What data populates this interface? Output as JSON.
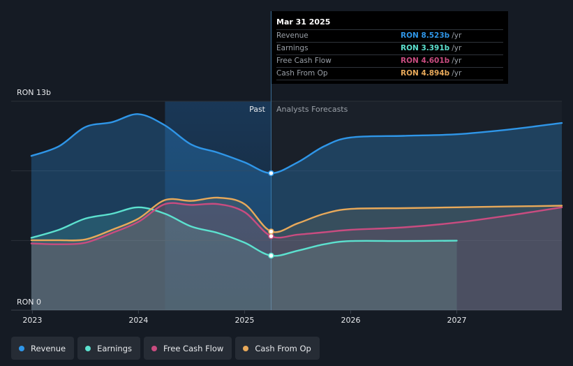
{
  "chart_data": {
    "type": "area",
    "y_axis": {
      "top_label": "RON 13b",
      "bottom_label": "RON 0",
      "ylim": [
        0,
        13
      ]
    },
    "x_axis": {
      "ticks": [
        "2023",
        "2024",
        "2025",
        "2026",
        "2027"
      ],
      "xlim": [
        2022.8,
        2027.99
      ]
    },
    "past_label": "Past",
    "forecast_label": "Analysts Forecasts",
    "divider_x": 2025.25,
    "series": [
      {
        "name": "Revenue",
        "color": "#2f96e8",
        "points": [
          [
            2022.99,
            9.6
          ],
          [
            2023.25,
            10.2
          ],
          [
            2023.5,
            11.4
          ],
          [
            2023.75,
            11.7
          ],
          [
            2024.0,
            12.2
          ],
          [
            2024.25,
            11.5
          ],
          [
            2024.5,
            10.3
          ],
          [
            2024.75,
            9.8
          ],
          [
            2025.0,
            9.2
          ],
          [
            2025.25,
            8.523
          ],
          [
            2025.5,
            9.2
          ],
          [
            2025.75,
            10.2
          ],
          [
            2026.0,
            10.75
          ],
          [
            2026.5,
            10.85
          ],
          [
            2027.0,
            10.95
          ],
          [
            2027.5,
            11.25
          ],
          [
            2027.99,
            11.65
          ]
        ]
      },
      {
        "name": "Earnings",
        "color": "#5ce1cf",
        "points": [
          [
            2022.99,
            4.5
          ],
          [
            2023.25,
            5.0
          ],
          [
            2023.5,
            5.7
          ],
          [
            2023.75,
            6.0
          ],
          [
            2024.0,
            6.4
          ],
          [
            2024.25,
            6.0
          ],
          [
            2024.5,
            5.2
          ],
          [
            2024.75,
            4.8
          ],
          [
            2025.0,
            4.2
          ],
          [
            2025.25,
            3.391
          ],
          [
            2025.5,
            3.7
          ],
          [
            2025.75,
            4.1
          ],
          [
            2026.0,
            4.3
          ],
          [
            2026.5,
            4.3
          ],
          [
            2027.0,
            4.32
          ]
        ]
      },
      {
        "name": "Free Cash Flow",
        "color": "#c94c80",
        "points": [
          [
            2022.99,
            4.15
          ],
          [
            2023.25,
            4.1
          ],
          [
            2023.5,
            4.2
          ],
          [
            2023.75,
            4.8
          ],
          [
            2024.0,
            5.5
          ],
          [
            2024.25,
            6.6
          ],
          [
            2024.5,
            6.55
          ],
          [
            2024.75,
            6.6
          ],
          [
            2025.0,
            6.1
          ],
          [
            2025.25,
            4.601
          ],
          [
            2025.5,
            4.7
          ],
          [
            2025.75,
            4.85
          ],
          [
            2026.0,
            5.0
          ],
          [
            2026.5,
            5.15
          ],
          [
            2027.0,
            5.45
          ],
          [
            2027.5,
            5.9
          ],
          [
            2027.99,
            6.4
          ]
        ]
      },
      {
        "name": "Cash From Op",
        "color": "#e8a95a",
        "points": [
          [
            2022.99,
            4.35
          ],
          [
            2023.25,
            4.35
          ],
          [
            2023.5,
            4.4
          ],
          [
            2023.75,
            5.0
          ],
          [
            2024.0,
            5.7
          ],
          [
            2024.25,
            6.85
          ],
          [
            2024.5,
            6.8
          ],
          [
            2024.75,
            7.0
          ],
          [
            2025.0,
            6.6
          ],
          [
            2025.25,
            4.894
          ],
          [
            2025.5,
            5.4
          ],
          [
            2025.75,
            6.0
          ],
          [
            2026.0,
            6.3
          ],
          [
            2026.5,
            6.35
          ],
          [
            2027.0,
            6.4
          ],
          [
            2027.5,
            6.45
          ],
          [
            2027.99,
            6.5
          ]
        ]
      }
    ]
  },
  "tooltip": {
    "date": "Mar 31 2025",
    "rows": [
      {
        "label": "Revenue",
        "value": "RON 8.523b",
        "unit": "/yr",
        "color": "#2f96e8"
      },
      {
        "label": "Earnings",
        "value": "RON 3.391b",
        "unit": "/yr",
        "color": "#5ce1cf"
      },
      {
        "label": "Free Cash Flow",
        "value": "RON 4.601b",
        "unit": "/yr",
        "color": "#c94c80"
      },
      {
        "label": "Cash From Op",
        "value": "RON 4.894b",
        "unit": "/yr",
        "color": "#e8a95a"
      }
    ]
  },
  "legend": [
    {
      "label": "Revenue",
      "color": "#2f96e8"
    },
    {
      "label": "Earnings",
      "color": "#5ce1cf"
    },
    {
      "label": "Free Cash Flow",
      "color": "#c94c80"
    },
    {
      "label": "Cash From Op",
      "color": "#e8a95a"
    }
  ]
}
